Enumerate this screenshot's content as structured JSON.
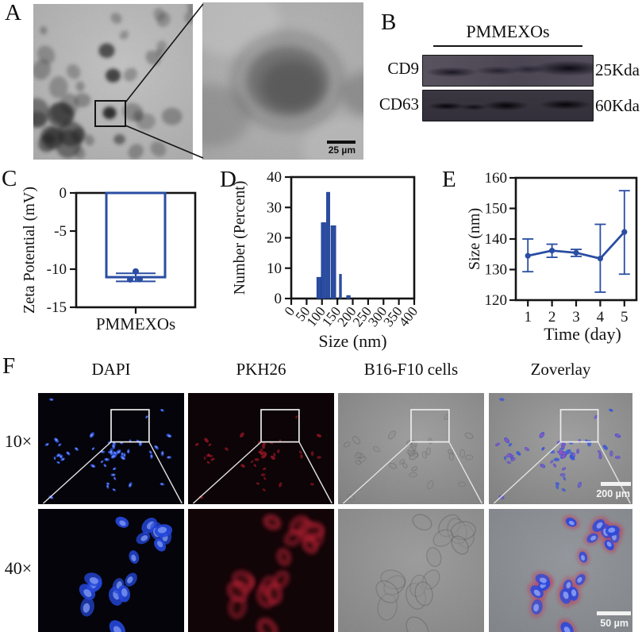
{
  "panels": {
    "a": "A",
    "b": "B",
    "c": "C",
    "d": "D",
    "e": "E",
    "f": "F"
  },
  "panel_a": {
    "scale_bar_label": "25 µm"
  },
  "panel_b": {
    "group_title": "PMMEXOs",
    "rows": [
      {
        "protein": "CD9",
        "weight": "25Kda"
      },
      {
        "protein": "CD63",
        "weight": "60Kda"
      }
    ]
  },
  "panel_f": {
    "column_headers": [
      "DAPI",
      "PKH26",
      "B16-F10 cells",
      "Zoverlay"
    ],
    "row_labels": [
      "10×",
      "40×"
    ],
    "scale_bar_10x": "200 µm",
    "scale_bar_40x": "50 µm"
  },
  "colors": {
    "accent_blue": "#2a4da3",
    "axis_black": "#141414",
    "dapi_blue": "#2e55e6",
    "pkh26_red": "#b81b2d",
    "overlay_magenta": "#d84fa8"
  },
  "chart_data": [
    {
      "id": "zeta_potential",
      "type": "bar",
      "bar_style": "open",
      "categories": [
        "PMMEXOs"
      ],
      "values": [
        -11.05
      ],
      "error_high": [
        -10.55
      ],
      "error_low": [
        -11.6
      ],
      "points": [
        -10.3,
        -11.35,
        -11.3
      ],
      "ylabel": "Zeta Potential (mV)",
      "xlabel": "",
      "ylim": [
        -15,
        0
      ],
      "yticks": [
        0,
        -5,
        -10,
        -15
      ],
      "legend": "none",
      "grid": false,
      "color": "#2a4da3"
    },
    {
      "id": "size_distribution",
      "type": "bar",
      "bar_style": "histogram",
      "xlabel": "Size (nm)",
      "ylabel": "Number (Percent)",
      "xlim": [
        0,
        400
      ],
      "ylim": [
        0,
        40
      ],
      "xticks": [
        0,
        50,
        100,
        150,
        200,
        250,
        300,
        350,
        400
      ],
      "yticks": [
        0,
        10,
        20,
        30,
        40
      ],
      "bars": [
        {
          "x": 90,
          "w": 14,
          "v": 7
        },
        {
          "x": 105,
          "w": 15,
          "v": 25
        },
        {
          "x": 120,
          "w": 11,
          "v": 35
        },
        {
          "x": 137,
          "w": 16,
          "v": 24
        },
        {
          "x": 160,
          "w": 7,
          "v": 8
        },
        {
          "x": 186,
          "w": 12,
          "v": 1
        }
      ],
      "legend": "none",
      "grid": false,
      "color": "#2a4da3"
    },
    {
      "id": "size_stability",
      "type": "line",
      "xlabel": "Time (day)",
      "ylabel": "Size (nm)",
      "xlim": [
        0.5,
        5.5
      ],
      "ylim": [
        120,
        160
      ],
      "xticks": [
        1,
        2,
        3,
        4,
        5
      ],
      "yticks": [
        120,
        130,
        140,
        150,
        160
      ],
      "x": [
        1,
        2,
        3,
        4,
        5
      ],
      "y": [
        134.5,
        136.2,
        135.5,
        133.6,
        142.3
      ],
      "yerr_high": [
        140.0,
        138.3,
        136.6,
        144.8,
        155.8
      ],
      "yerr_low": [
        129.3,
        134.0,
        134.3,
        122.6,
        128.5
      ],
      "legend": "none",
      "grid": false,
      "color": "#2a4da3"
    }
  ]
}
